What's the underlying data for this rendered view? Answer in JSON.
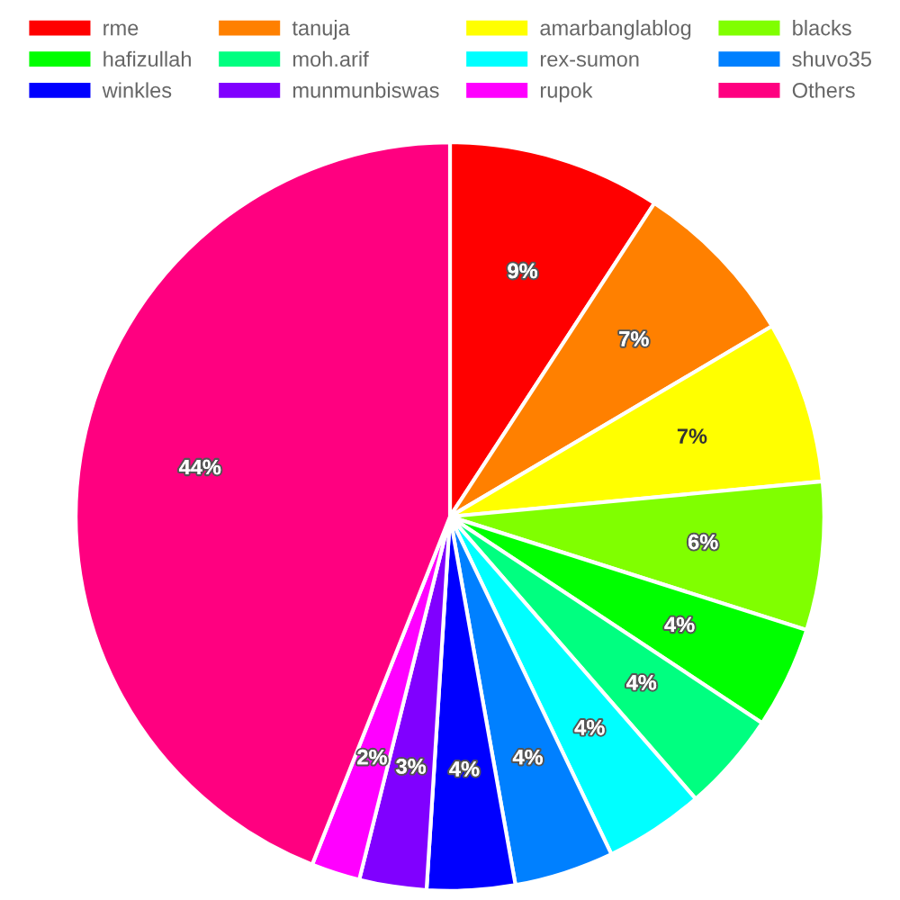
{
  "chart_data": {
    "type": "pie",
    "categories": [
      "rme",
      "tanuja",
      "amarbanglablog",
      "blacks",
      "hafizullah",
      "moh.arif",
      "rex-sumon",
      "shuvo35",
      "winkles",
      "munmunbiswas",
      "rupok",
      "Others"
    ],
    "values": [
      9.2,
      7.3,
      7.0,
      6.4,
      4.4,
      4.3,
      4.3,
      4.3,
      3.8,
      2.9,
      2.1,
      44.0
    ],
    "value_labels": [
      "9%",
      "7%",
      "7%",
      "6%",
      "4%",
      "4%",
      "4%",
      "4%",
      "4%",
      "3%",
      "2%",
      "44%"
    ],
    "colors": [
      "#ff0000",
      "#ff8000",
      "#ffff00",
      "#80ff00",
      "#00ff00",
      "#00ff80",
      "#00ffff",
      "#0080ff",
      "#0000ff",
      "#8000ff",
      "#ff00ff",
      "#ff0080"
    ],
    "legend": "top"
  }
}
